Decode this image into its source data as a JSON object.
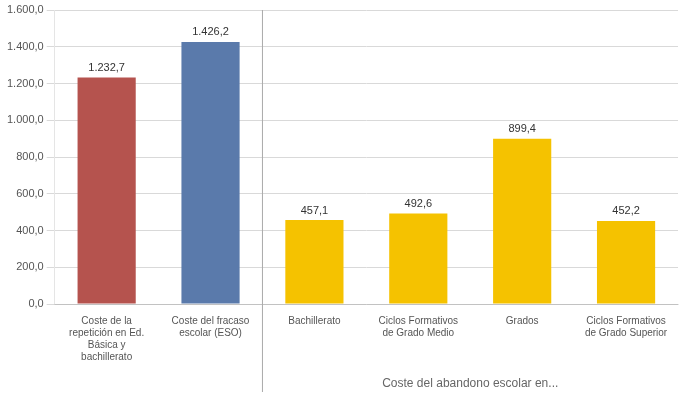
{
  "chart_data": {
    "type": "bar",
    "categories": [
      "Coste de la\nrepetición en Ed.\nBásica y\nbachillerato",
      "Coste del fracaso\nescolar (ESO)",
      "Bachillerato",
      "Ciclos Formativos\nde Grado Medio",
      "Grados",
      "Ciclos Formativos\nde Grado Superior"
    ],
    "values": [
      1232.7,
      1426.2,
      457.1,
      492.6,
      899.4,
      452.2
    ],
    "value_labels": [
      "1.232,7",
      "1.426,2",
      "457,1",
      "492,6",
      "899,4",
      "452,2"
    ],
    "data_labels": true,
    "colors": [
      "#b5534e",
      "#5a7aab",
      "#f5c200",
      "#f5c200",
      "#f5c200",
      "#f5c200"
    ],
    "ylim": [
      0,
      1600
    ],
    "yticks": [
      {
        "value": 0,
        "label": "0,0"
      },
      {
        "value": 200,
        "label": "200,0"
      },
      {
        "value": 400,
        "label": "400,0"
      },
      {
        "value": 600,
        "label": "600,0"
      },
      {
        "value": 800,
        "label": "800,0"
      },
      {
        "value": 1000,
        "label": "1.000,0"
      },
      {
        "value": 1200,
        "label": "1.200,0"
      },
      {
        "value": 1400,
        "label": "1.400,0"
      },
      {
        "value": 1600,
        "label": "1.600,0"
      }
    ],
    "annotations": [
      "Coste del abandono escolar en..."
    ],
    "grid": true
  }
}
